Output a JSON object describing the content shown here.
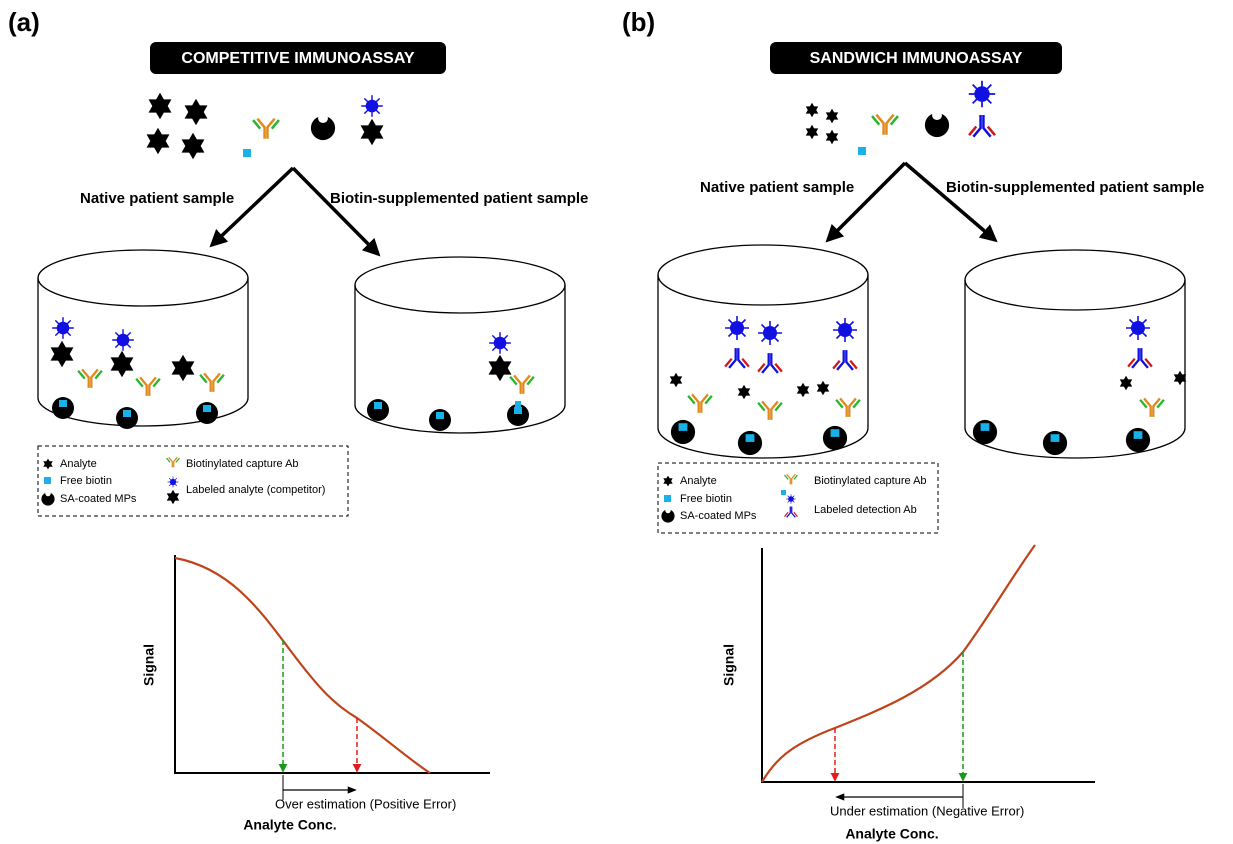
{
  "panels": [
    {
      "label": "(a)",
      "title": "COMPETITIVE IMMUNOASSAY",
      "branches": [
        "Native patient sample",
        "Biotin-supplemented patient sample"
      ],
      "legend": [
        "Analyte",
        "Free biotin",
        "SA-coated MPs",
        "Biotinylated capture Ab",
        "Labeled analyte (competitor)"
      ],
      "plot": {
        "y_label": "Signal",
        "x_label": "Analyte Conc.",
        "error_label": "Over estimation (Positive Error)"
      }
    },
    {
      "label": "(b)",
      "title": "SANDWICH IMMUNOASSAY",
      "branches": [
        "Native patient sample",
        "Biotin-supplemented patient sample"
      ],
      "legend": [
        "Analyte",
        "Free biotin",
        "SA-coated MPs",
        "Biotinylated capture Ab",
        "Labeled detection Ab"
      ],
      "plot": {
        "y_label": "Signal",
        "x_label": "Analyte Conc.",
        "error_label": "Under estimation (Negative Error)"
      }
    }
  ]
}
